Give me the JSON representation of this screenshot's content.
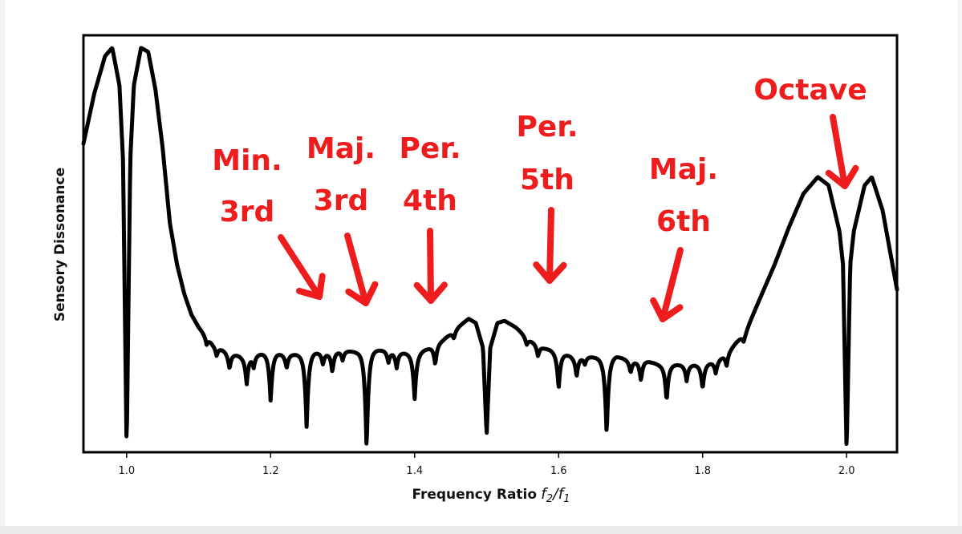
{
  "chart_data": {
    "type": "line",
    "xlabel": "Frequency Ratio",
    "xlabel_math": {
      "num": "f",
      "num_sub": "2",
      "den": "f",
      "den_sub": "1"
    },
    "ylabel": "Sensory Dissonance",
    "xlim": [
      0.94,
      2.07
    ],
    "ylim": [
      0,
      1.0
    ],
    "x_ticks": [
      1.0,
      1.2,
      1.4,
      1.6,
      1.8,
      2.0
    ],
    "x_tick_labels": [
      "1.0",
      "1.2",
      "1.4",
      "1.6",
      "1.8",
      "2.0"
    ],
    "y_ticks_shown": false,
    "grid": false,
    "colors": {
      "line": "#000000",
      "annotation": "#ee1c1c",
      "frame": "#000000"
    },
    "series": [
      {
        "points": [
          [
            0.94,
            0.74
          ],
          [
            0.955,
            0.86
          ],
          [
            0.97,
            0.95
          ],
          [
            0.98,
            0.97
          ],
          [
            0.99,
            0.88
          ],
          [
            0.995,
            0.7
          ],
          [
            1.0,
            0.0
          ],
          [
            1.005,
            0.7
          ],
          [
            1.01,
            0.88
          ],
          [
            1.02,
            0.97
          ],
          [
            1.03,
            0.96
          ],
          [
            1.04,
            0.87
          ],
          [
            1.05,
            0.73
          ],
          [
            1.06,
            0.55
          ],
          [
            1.07,
            0.45
          ],
          [
            1.08,
            0.38
          ],
          [
            1.09,
            0.33
          ],
          [
            1.1,
            0.3
          ],
          [
            1.12,
            0.26
          ],
          [
            1.14,
            0.24
          ],
          [
            1.16,
            0.23
          ],
          [
            1.18,
            0.235
          ],
          [
            1.2,
            0.24
          ],
          [
            1.22,
            0.235
          ],
          [
            1.24,
            0.235
          ],
          [
            1.26,
            0.24
          ],
          [
            1.28,
            0.24
          ],
          [
            1.3,
            0.245
          ],
          [
            1.32,
            0.24
          ],
          [
            1.34,
            0.245
          ],
          [
            1.36,
            0.245
          ],
          [
            1.38,
            0.24
          ],
          [
            1.4,
            0.235
          ],
          [
            1.42,
            0.25
          ],
          [
            1.44,
            0.27
          ],
          [
            1.46,
            0.3
          ],
          [
            1.475,
            0.32
          ],
          [
            1.485,
            0.31
          ],
          [
            1.495,
            0.25
          ],
          [
            1.5,
            0.04
          ],
          [
            1.505,
            0.25
          ],
          [
            1.515,
            0.31
          ],
          [
            1.525,
            0.315
          ],
          [
            1.54,
            0.3
          ],
          [
            1.56,
            0.27
          ],
          [
            1.58,
            0.25
          ],
          [
            1.6,
            0.24
          ],
          [
            1.62,
            0.23
          ],
          [
            1.64,
            0.23
          ],
          [
            1.66,
            0.225
          ],
          [
            1.68,
            0.23
          ],
          [
            1.7,
            0.22
          ],
          [
            1.72,
            0.22
          ],
          [
            1.74,
            0.21
          ],
          [
            1.76,
            0.21
          ],
          [
            1.78,
            0.21
          ],
          [
            1.8,
            0.21
          ],
          [
            1.82,
            0.22
          ],
          [
            1.84,
            0.25
          ],
          [
            1.86,
            0.29
          ],
          [
            1.88,
            0.37
          ],
          [
            1.9,
            0.45
          ],
          [
            1.92,
            0.54
          ],
          [
            1.94,
            0.62
          ],
          [
            1.96,
            0.66
          ],
          [
            1.975,
            0.64
          ],
          [
            1.99,
            0.53
          ],
          [
            1.995,
            0.45
          ],
          [
            2.0,
            0.0
          ],
          [
            2.005,
            0.45
          ],
          [
            2.01,
            0.53
          ],
          [
            2.025,
            0.64
          ],
          [
            2.035,
            0.66
          ],
          [
            2.05,
            0.58
          ],
          [
            2.07,
            0.39
          ]
        ]
      }
    ],
    "dips": [
      {
        "x": 1.1111,
        "depth": 0.02
      },
      {
        "x": 1.125,
        "depth": 0.025
      },
      {
        "x": 1.1429,
        "depth": 0.04
      },
      {
        "x": 1.1667,
        "depth": 0.07
      },
      {
        "x": 1.1765,
        "depth": 0.03
      },
      {
        "x": 1.2,
        "depth": 0.12
      },
      {
        "x": 1.2222,
        "depth": 0.035
      },
      {
        "x": 1.25,
        "depth": 0.18
      },
      {
        "x": 1.2727,
        "depth": 0.03
      },
      {
        "x": 1.2857,
        "depth": 0.05
      },
      {
        "x": 1.3,
        "depth": 0.025
      },
      {
        "x": 1.3333,
        "depth": 0.24
      },
      {
        "x": 1.3636,
        "depth": 0.03
      },
      {
        "x": 1.375,
        "depth": 0.04
      },
      {
        "x": 1.4,
        "depth": 0.11
      },
      {
        "x": 1.4286,
        "depth": 0.05
      },
      {
        "x": 1.4545,
        "depth": 0.02
      },
      {
        "x": 1.5556,
        "depth": 0.02
      },
      {
        "x": 1.5714,
        "depth": 0.03
      },
      {
        "x": 1.6,
        "depth": 0.09
      },
      {
        "x": 1.625,
        "depth": 0.05
      },
      {
        "x": 1.6364,
        "depth": 0.02
      },
      {
        "x": 1.6667,
        "depth": 0.19
      },
      {
        "x": 1.7,
        "depth": 0.03
      },
      {
        "x": 1.7143,
        "depth": 0.05
      },
      {
        "x": 1.75,
        "depth": 0.09
      },
      {
        "x": 1.7778,
        "depth": 0.04
      },
      {
        "x": 1.8,
        "depth": 0.06
      },
      {
        "x": 1.8182,
        "depth": 0.03
      },
      {
        "x": 1.8333,
        "depth": 0.035
      },
      {
        "x": 1.8571,
        "depth": 0.02
      }
    ],
    "annotations": [
      {
        "lines": [
          "Min.",
          "3rd"
        ],
        "x": 1.2
      },
      {
        "lines": [
          "Maj.",
          "3rd"
        ],
        "x": 1.25
      },
      {
        "lines": [
          "Per.",
          "4th"
        ],
        "x": 1.3333
      },
      {
        "lines": [
          "Per.",
          "5th"
        ],
        "x": 1.5
      },
      {
        "lines": [
          "Maj.",
          "6th"
        ],
        "x": 1.6667
      },
      {
        "lines": [
          "Octave"
        ],
        "x": 2.0
      }
    ]
  }
}
